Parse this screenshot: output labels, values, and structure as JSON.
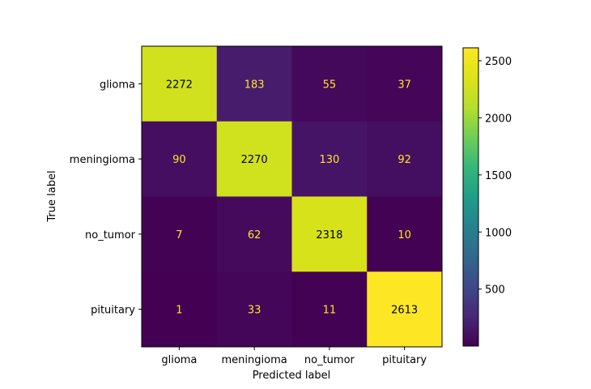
{
  "chart_data": {
    "type": "heatmap",
    "title": "",
    "xlabel": "Predicted label",
    "ylabel": "True label",
    "x_categories": [
      "glioma",
      "meningioma",
      "no_tumor",
      "pituitary"
    ],
    "y_categories": [
      "glioma",
      "meningioma",
      "no_tumor",
      "pituitary"
    ],
    "values": [
      [
        2272,
        183,
        55,
        37
      ],
      [
        90,
        2270,
        130,
        92
      ],
      [
        7,
        62,
        2318,
        10
      ],
      [
        1,
        33,
        11,
        2613
      ]
    ],
    "colormap": "viridis",
    "colorbar": {
      "range": [
        1,
        2613
      ],
      "ticks": [
        500,
        1000,
        1500,
        2000,
        2500
      ]
    },
    "grid": false,
    "text_colors": {
      "dark_cell": "#fde725",
      "light_cell": "#000000"
    }
  }
}
